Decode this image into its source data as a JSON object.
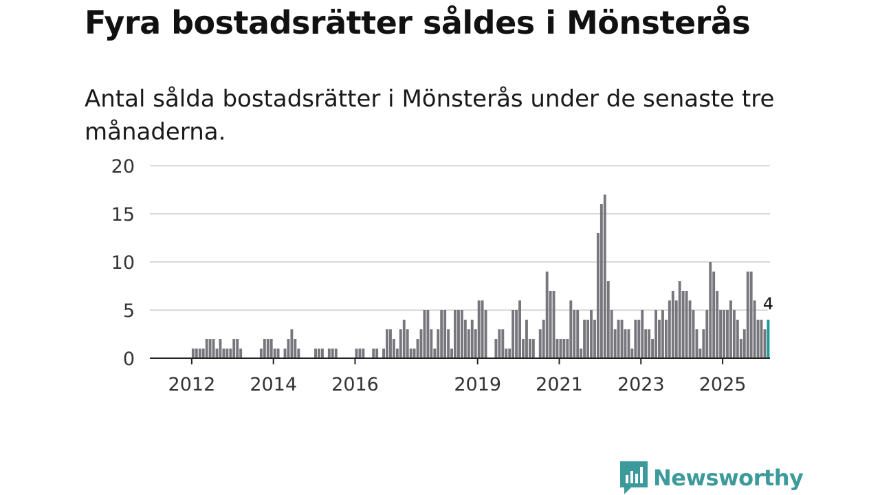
{
  "title": "Fyra bostadsrätter såldes i Mönsterås",
  "subtitle": "Antal sålda bostadsrätter i Mönsterås under de senaste tre månaderna.",
  "brand": {
    "name": "Newsworthy",
    "color": "#3d9a9a",
    "icon": "newsworthy-logo-icon"
  },
  "colors": {
    "bar": "#76767c",
    "highlight": "#1a9a9a",
    "grid": "#d9d9d9",
    "axis": "#222222",
    "text": "#333333"
  },
  "chart_data": {
    "type": "bar",
    "title": "Fyra bostadsrätter såldes i Mönsterås",
    "subtitle": "Antal sålda bostadsrätter i Mönsterås under de senaste tre månaderna.",
    "xlabel": "",
    "ylabel": "",
    "ylim": [
      0,
      20
    ],
    "yticks": [
      0,
      5,
      10,
      15,
      20
    ],
    "xticks": [
      "2012",
      "2014",
      "2016",
      "2019",
      "2021",
      "2023",
      "2025"
    ],
    "x_range": [
      "2011-01",
      "2026-03"
    ],
    "grid": true,
    "series": [
      {
        "name": "Sålda bostadsrätter",
        "values": [
          0,
          0,
          0,
          0,
          0,
          0,
          0,
          0,
          0,
          0,
          0,
          0,
          1,
          1,
          1,
          1,
          2,
          2,
          2,
          1,
          2,
          1,
          1,
          1,
          2,
          2,
          1,
          0,
          0,
          0,
          0,
          0,
          1,
          2,
          2,
          2,
          1,
          1,
          0,
          1,
          2,
          3,
          2,
          1,
          0,
          0,
          0,
          0,
          1,
          1,
          1,
          0,
          1,
          1,
          1,
          0,
          0,
          0,
          0,
          0,
          1,
          1,
          1,
          0,
          0,
          1,
          1,
          0,
          1,
          3,
          3,
          2,
          1,
          3,
          4,
          3,
          1,
          1,
          2,
          3,
          5,
          5,
          3,
          1,
          3,
          5,
          5,
          3,
          1,
          5,
          5,
          5,
          4,
          3,
          4,
          3,
          6,
          6,
          5,
          0,
          0,
          2,
          3,
          3,
          1,
          1,
          5,
          5,
          6,
          2,
          4,
          2,
          2,
          0,
          3,
          4,
          9,
          7,
          7,
          2,
          2,
          2,
          2,
          6,
          5,
          5,
          1,
          4,
          4,
          5,
          4,
          13,
          16,
          17,
          8,
          5,
          3,
          4,
          4,
          3,
          3,
          1,
          4,
          4,
          5,
          3,
          3,
          2,
          5,
          4,
          5,
          4,
          6,
          7,
          6,
          8,
          7,
          7,
          6,
          5,
          3,
          1,
          3,
          5,
          10,
          9,
          7,
          5,
          5,
          5,
          6,
          5,
          4,
          2,
          3,
          9,
          9,
          6,
          4,
          4,
          3,
          4
        ]
      }
    ],
    "highlight": {
      "label": "4",
      "value": 4,
      "index": "last"
    }
  }
}
